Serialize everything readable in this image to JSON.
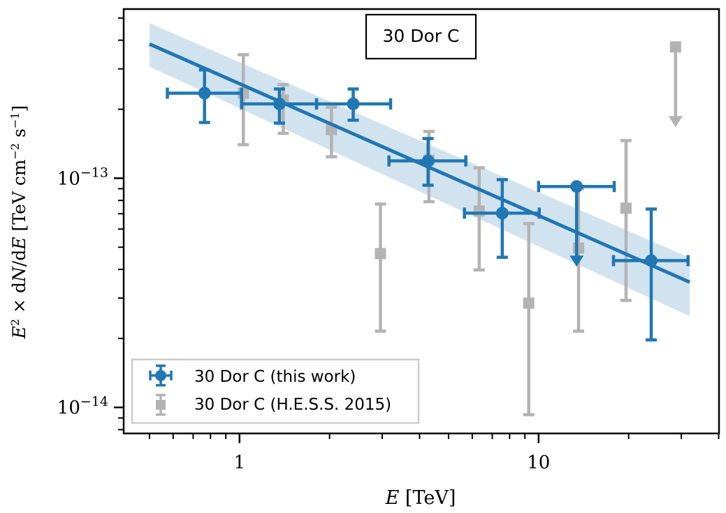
{
  "chart_data": {
    "type": "scatter",
    "title": "30 Dor C",
    "xlabel": "E [TeV]",
    "ylabel": "E² × dN/dE [TeV cm⁻² s⁻¹]",
    "xscale": "log",
    "yscale": "log",
    "xlim": [
      0.41,
      40.1
    ],
    "ylim": [
      7.7e-15,
      5.47e-13
    ],
    "x_major_ticks": [
      1,
      10
    ],
    "x_tick_labels": [
      "1",
      "10"
    ],
    "y_major_ticks": [
      1e-14,
      1e-13
    ],
    "y_tick_labels": [
      {
        "base": "10",
        "exp": "−14"
      },
      {
        "base": "10",
        "exp": "−13"
      }
    ],
    "grid": false,
    "legend_position": "lower-left",
    "colors": {
      "this_work": "#1f77b4",
      "hess": "#b3b3b3",
      "fit_band": "#d2e3f0",
      "frame": "#000000",
      "legend_border": "#cccccc"
    },
    "fit": {
      "name": "power-law fit",
      "e_min": 0.5,
      "e_max": 32,
      "flux_at_emin": 3.85e-13,
      "flux_at_emax": 3.52e-14,
      "band_at_emin": [
        3.07e-13,
        4.75e-13
      ],
      "band_at_emax": [
        2.5e-14,
        4.5e-14
      ]
    },
    "series": [
      {
        "name": "30 Dor C (this work)",
        "marker": "circle",
        "points": [
          {
            "x": 0.764,
            "y": 2.35e-13,
            "xlo": 0.574,
            "xhi": 1.016,
            "ylo": 1.75e-13,
            "yhi": 2.97e-13,
            "ul": false
          },
          {
            "x": 1.36,
            "y": 2.11e-13,
            "xlo": 1.016,
            "xhi": 1.81,
            "ylo": 1.74e-13,
            "yhi": 2.45e-13,
            "ul": false
          },
          {
            "x": 2.4,
            "y": 2.11e-13,
            "xlo": 1.81,
            "xhi": 3.2,
            "ylo": 1.79e-13,
            "yhi": 2.45e-13,
            "ul": false
          },
          {
            "x": 4.27,
            "y": 1.19e-13,
            "xlo": 3.16,
            "xhi": 5.71,
            "ylo": 9.32e-14,
            "yhi": 1.49e-13,
            "ul": false
          },
          {
            "x": 7.56,
            "y": 7.04e-14,
            "xlo": 5.65,
            "xhi": 10.05,
            "ylo": 4.52e-14,
            "yhi": 9.86e-14,
            "ul": false
          },
          {
            "x": 13.4,
            "y": 9.2e-14,
            "xlo": 10.0,
            "xhi": 17.9,
            "ylo": null,
            "yhi": null,
            "ul": true
          },
          {
            "x": 23.8,
            "y": 4.37e-14,
            "xlo": 17.8,
            "xhi": 31.6,
            "ylo": 1.97e-14,
            "yhi": 7.34e-14,
            "ul": false
          }
        ]
      },
      {
        "name": "30 Dor C (H.E.S.S. 2015)",
        "marker": "square",
        "points": [
          {
            "x": 1.03,
            "y": 2.35e-13,
            "ylo": 1.4e-13,
            "yhi": 3.46e-13,
            "ul": false
          },
          {
            "x": 1.4,
            "y": 2.19e-13,
            "ylo": 1.57e-13,
            "yhi": 2.56e-13,
            "ul": false
          },
          {
            "x": 2.03,
            "y": 1.63e-13,
            "ylo": 1.24e-13,
            "yhi": 2.04e-13,
            "ul": false
          },
          {
            "x": 2.96,
            "y": 4.69e-14,
            "ylo": 2.15e-14,
            "yhi": 7.71e-14,
            "ul": false
          },
          {
            "x": 4.3,
            "y": 1.2e-13,
            "ylo": 7.9e-14,
            "yhi": 1.6e-13,
            "ul": false
          },
          {
            "x": 6.33,
            "y": 7.19e-14,
            "ylo": 3.98e-14,
            "yhi": 1.11e-13,
            "ul": false
          },
          {
            "x": 9.27,
            "y": 2.85e-14,
            "ylo": 9.3e-15,
            "yhi": 6.34e-14,
            "ul": false
          },
          {
            "x": 13.6,
            "y": 4.96e-14,
            "ylo": 2.15e-14,
            "yhi": 9e-14,
            "ul": false
          },
          {
            "x": 19.6,
            "y": 7.4e-14,
            "ylo": 2.93e-14,
            "yhi": 1.46e-13,
            "ul": false
          },
          {
            "x": 28.7,
            "y": 3.74e-13,
            "ylo": null,
            "yhi": null,
            "ul": true
          }
        ]
      }
    ]
  },
  "legend": {
    "entries": [
      {
        "label": "30 Dor C (this work)"
      },
      {
        "label": "30 Dor C (H.E.S.S. 2015)"
      }
    ]
  }
}
